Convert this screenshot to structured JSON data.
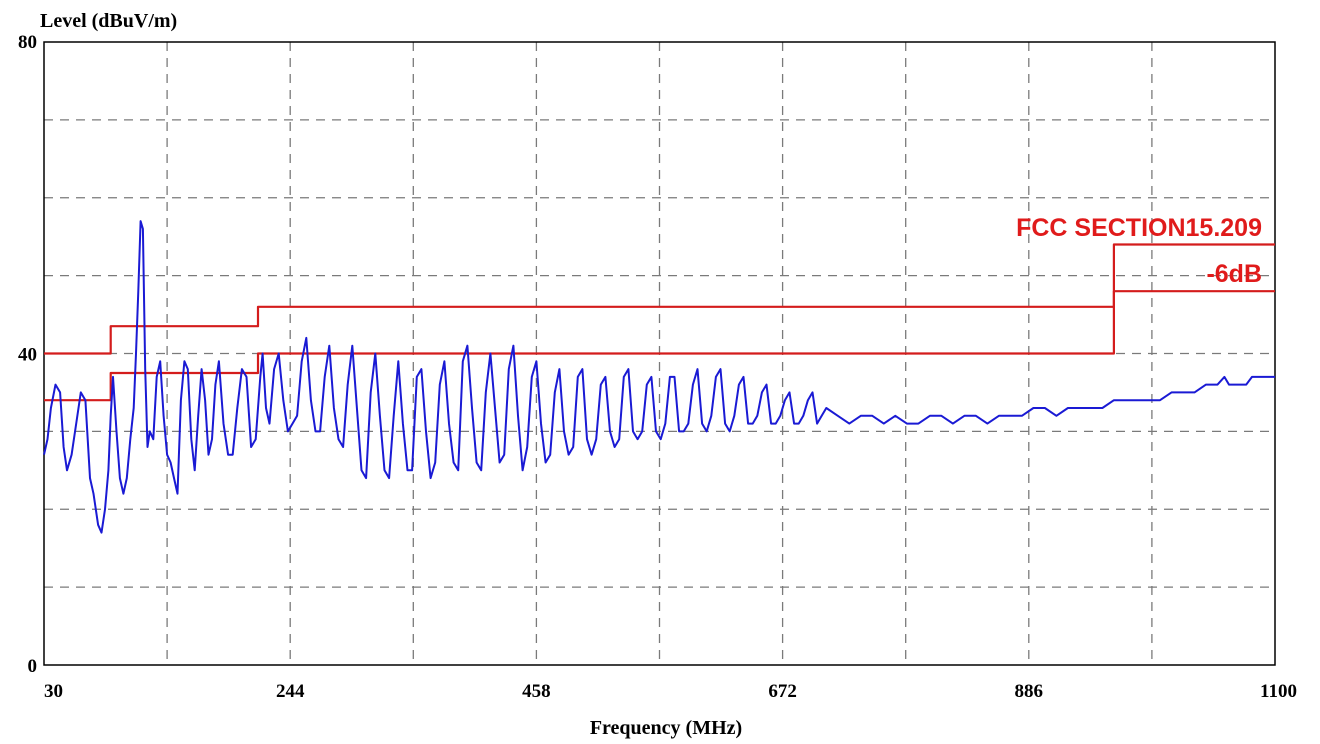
{
  "chart_data": {
    "type": "line",
    "title": "",
    "xlabel": "Frequency (MHz)",
    "ylabel": "Level (dBuV/m)",
    "xlim": [
      30,
      1100
    ],
    "ylim": [
      0,
      80
    ],
    "x_ticks": [
      "30",
      "244",
      "458",
      "672",
      "886",
      "1100"
    ],
    "y_ticks": [
      "0",
      "40",
      "80"
    ],
    "grid": true,
    "grid_x_values": [
      137,
      244,
      351,
      458,
      565,
      672,
      779,
      886,
      993
    ],
    "grid_y_values": [
      10,
      20,
      30,
      40,
      50,
      60,
      70
    ],
    "colors": {
      "measurement": "#1a1ad4",
      "limit": "#d41c1c",
      "grid": "#7a7a7a",
      "frame": "#000000"
    },
    "series": [
      {
        "kind": "limit",
        "label": "FCC SECTION15.209",
        "x": [
          30,
          88,
          88,
          216,
          216,
          960,
          960,
          1100
        ],
        "y": [
          40,
          40,
          43.5,
          43.5,
          46,
          46,
          54,
          54
        ]
      },
      {
        "kind": "margin",
        "label": "-6dB",
        "x": [
          30,
          88,
          88,
          216,
          216,
          960,
          960,
          1100
        ],
        "y": [
          34,
          34,
          37.5,
          37.5,
          40,
          40,
          48,
          48
        ]
      },
      {
        "kind": "measurement",
        "x": [
          30,
          33,
          36,
          40,
          44,
          47,
          50,
          54,
          58,
          62,
          66,
          70,
          73,
          75,
          77,
          80,
          83,
          86,
          88,
          90,
          93,
          96,
          99,
          102,
          105,
          108,
          110,
          112,
          114,
          116,
          118,
          120,
          122,
          125,
          128,
          131,
          134,
          137,
          140,
          143,
          146,
          149,
          152,
          155,
          158,
          161,
          164,
          167,
          170,
          173,
          176,
          179,
          182,
          186,
          190,
          194,
          198,
          202,
          206,
          210,
          214,
          218,
          220,
          223,
          226,
          230,
          234,
          238,
          242,
          246,
          250,
          254,
          258,
          262,
          266,
          270,
          274,
          278,
          282,
          286,
          290,
          294,
          298,
          302,
          306,
          310,
          314,
          318,
          322,
          326,
          330,
          334,
          338,
          342,
          346,
          350,
          354,
          358,
          362,
          366,
          370,
          374,
          378,
          382,
          386,
          390,
          394,
          398,
          402,
          406,
          410,
          414,
          418,
          422,
          426,
          430,
          434,
          438,
          442,
          446,
          450,
          454,
          458,
          462,
          466,
          470,
          474,
          478,
          482,
          486,
          490,
          494,
          498,
          502,
          506,
          510,
          514,
          518,
          522,
          526,
          530,
          534,
          538,
          542,
          546,
          550,
          554,
          558,
          562,
          566,
          570,
          574,
          578,
          582,
          586,
          590,
          594,
          598,
          602,
          606,
          610,
          614,
          618,
          622,
          626,
          630,
          634,
          638,
          642,
          646,
          650,
          654,
          658,
          662,
          666,
          670,
          674,
          678,
          682,
          686,
          690,
          694,
          698,
          702,
          706,
          710,
          720,
          730,
          740,
          750,
          760,
          770,
          780,
          790,
          800,
          810,
          820,
          830,
          840,
          850,
          860,
          870,
          880,
          890,
          900,
          910,
          920,
          930,
          940,
          950,
          960,
          970,
          980,
          990,
          1000,
          1010,
          1020,
          1030,
          1040,
          1050,
          1056,
          1060,
          1064,
          1070,
          1075,
          1080,
          1085,
          1090,
          1095,
          1100
        ],
        "y": [
          27,
          29,
          33,
          36,
          35,
          28,
          25,
          27,
          31,
          35,
          34,
          24,
          22,
          20,
          18,
          17,
          20,
          25,
          32,
          37,
          30,
          24,
          22,
          24,
          29,
          33,
          40,
          48,
          57,
          56,
          38,
          28,
          30,
          29,
          37,
          39,
          32,
          27,
          26,
          24,
          22,
          34,
          39,
          38,
          29,
          25,
          32,
          38,
          34,
          27,
          29,
          36,
          39,
          31,
          27,
          27,
          33,
          38,
          37,
          28,
          29,
          37,
          40,
          33,
          31,
          38,
          40,
          34,
          30,
          31,
          32,
          39,
          42,
          34,
          30,
          30,
          37,
          41,
          33,
          29,
          28,
          36,
          41,
          33,
          25,
          24,
          35,
          40,
          32,
          25,
          24,
          32,
          39,
          31,
          25,
          25,
          37,
          38,
          30,
          24,
          26,
          36,
          39,
          31,
          26,
          25,
          39,
          41,
          33,
          26,
          25,
          35,
          40,
          33,
          26,
          27,
          38,
          41,
          32,
          25,
          28,
          37,
          39,
          31,
          26,
          27,
          35,
          38,
          30,
          27,
          28,
          37,
          38,
          29,
          27,
          29,
          36,
          37,
          30,
          28,
          29,
          37,
          38,
          30,
          29,
          30,
          36,
          37,
          30,
          29,
          31,
          37,
          37,
          30,
          30,
          31,
          36,
          38,
          31,
          30,
          32,
          37,
          38,
          31,
          30,
          32,
          36,
          37,
          31,
          31,
          32,
          35,
          36,
          31,
          31,
          32,
          34,
          35,
          31,
          31,
          32,
          34,
          35,
          31,
          32,
          33,
          32,
          31,
          32,
          32,
          31,
          32,
          31,
          31,
          32,
          32,
          31,
          32,
          32,
          31,
          32,
          32,
          32,
          33,
          33,
          32,
          33,
          33,
          33,
          33,
          34,
          34,
          34,
          34,
          34,
          35,
          35,
          35,
          36,
          36,
          37,
          36,
          36,
          36,
          36,
          37,
          37,
          37,
          37,
          37
        ]
      }
    ],
    "annotations": [
      {
        "text": "FCC SECTION15.209"
      },
      {
        "text": "-6dB"
      }
    ]
  }
}
